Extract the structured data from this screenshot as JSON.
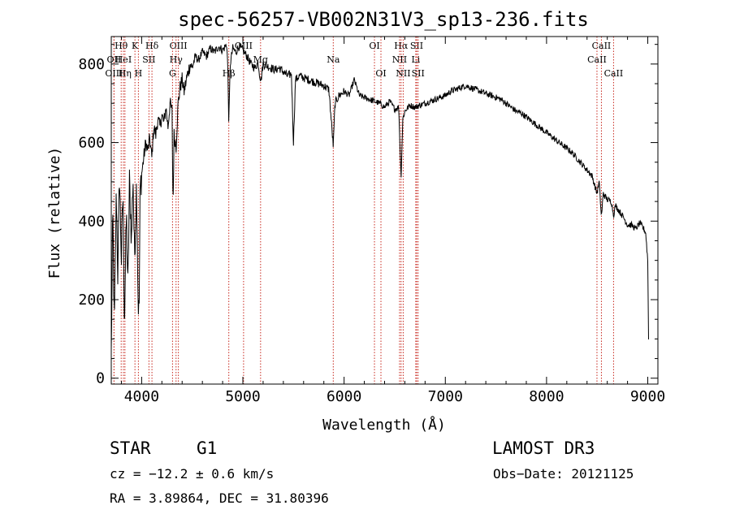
{
  "chart_data": {
    "type": "line",
    "title": "spec-56257-VB002N31V3_sp13-236.fits",
    "xlabel": "Wavelength (Å)",
    "ylabel": "Flux (relative)",
    "xlim": [
      3700,
      9100
    ],
    "ylim": [
      -15,
      870
    ],
    "x_ticks": [
      4000,
      5000,
      6000,
      7000,
      8000,
      9000
    ],
    "y_ticks": [
      0,
      200,
      400,
      600,
      800
    ],
    "spectrum_anchors": [
      [
        3700,
        60
      ],
      [
        3715,
        420
      ],
      [
        3730,
        120
      ],
      [
        3750,
        480
      ],
      [
        3765,
        250
      ],
      [
        3780,
        520
      ],
      [
        3800,
        300
      ],
      [
        3815,
        480
      ],
      [
        3830,
        140
      ],
      [
        3850,
        420
      ],
      [
        3865,
        220
      ],
      [
        3880,
        500
      ],
      [
        3900,
        350
      ],
      [
        3915,
        520
      ],
      [
        3930,
        300
      ],
      [
        3950,
        500
      ],
      [
        3965,
        200
      ],
      [
        3975,
        160
      ],
      [
        3985,
        480
      ],
      [
        4000,
        520
      ],
      [
        4020,
        560
      ],
      [
        4040,
        600
      ],
      [
        4060,
        580
      ],
      [
        4080,
        610
      ],
      [
        4100,
        560
      ],
      [
        4120,
        640
      ],
      [
        4140,
        620
      ],
      [
        4160,
        660
      ],
      [
        4180,
        640
      ],
      [
        4200,
        670
      ],
      [
        4220,
        650
      ],
      [
        4240,
        690
      ],
      [
        4260,
        640
      ],
      [
        4280,
        700
      ],
      [
        4300,
        680
      ],
      [
        4310,
        430
      ],
      [
        4320,
        620
      ],
      [
        4340,
        590
      ],
      [
        4360,
        700
      ],
      [
        4380,
        740
      ],
      [
        4400,
        760
      ],
      [
        4420,
        730
      ],
      [
        4450,
        770
      ],
      [
        4480,
        800
      ],
      [
        4500,
        790
      ],
      [
        4530,
        820
      ],
      [
        4560,
        810
      ],
      [
        4600,
        830
      ],
      [
        4640,
        820
      ],
      [
        4680,
        840
      ],
      [
        4720,
        830
      ],
      [
        4760,
        845
      ],
      [
        4800,
        835
      ],
      [
        4840,
        850
      ],
      [
        4850,
        800
      ],
      [
        4861,
        650
      ],
      [
        4875,
        800
      ],
      [
        4900,
        840
      ],
      [
        4930,
        830
      ],
      [
        4960,
        845
      ],
      [
        5000,
        835
      ],
      [
        5040,
        820
      ],
      [
        5080,
        800
      ],
      [
        5120,
        790
      ],
      [
        5150,
        805
      ],
      [
        5167,
        770
      ],
      [
        5180,
        760
      ],
      [
        5200,
        800
      ],
      [
        5240,
        795
      ],
      [
        5280,
        790
      ],
      [
        5320,
        785
      ],
      [
        5360,
        790
      ],
      [
        5400,
        780
      ],
      [
        5440,
        770
      ],
      [
        5480,
        775
      ],
      [
        5500,
        600
      ],
      [
        5520,
        760
      ],
      [
        5560,
        770
      ],
      [
        5600,
        765
      ],
      [
        5650,
        760
      ],
      [
        5700,
        755
      ],
      [
        5750,
        750
      ],
      [
        5800,
        745
      ],
      [
        5850,
        735
      ],
      [
        5875,
        650
      ],
      [
        5893,
        590
      ],
      [
        5910,
        700
      ],
      [
        5950,
        720
      ],
      [
        6000,
        730
      ],
      [
        6050,
        720
      ],
      [
        6100,
        760
      ],
      [
        6150,
        720
      ],
      [
        6200,
        715
      ],
      [
        6250,
        710
      ],
      [
        6300,
        705
      ],
      [
        6350,
        700
      ],
      [
        6400,
        690
      ],
      [
        6450,
        705
      ],
      [
        6500,
        685
      ],
      [
        6540,
        690
      ],
      [
        6563,
        510
      ],
      [
        6580,
        660
      ],
      [
        6600,
        680
      ],
      [
        6650,
        695
      ],
      [
        6700,
        690
      ],
      [
        6750,
        695
      ],
      [
        6800,
        700
      ],
      [
        6850,
        705
      ],
      [
        6900,
        710
      ],
      [
        6950,
        715
      ],
      [
        7000,
        720
      ],
      [
        7050,
        730
      ],
      [
        7100,
        735
      ],
      [
        7150,
        740
      ],
      [
        7200,
        745
      ],
      [
        7250,
        740
      ],
      [
        7300,
        735
      ],
      [
        7350,
        730
      ],
      [
        7400,
        725
      ],
      [
        7450,
        720
      ],
      [
        7500,
        715
      ],
      [
        7550,
        710
      ],
      [
        7600,
        700
      ],
      [
        7650,
        690
      ],
      [
        7700,
        680
      ],
      [
        7750,
        675
      ],
      [
        7800,
        665
      ],
      [
        7850,
        655
      ],
      [
        7900,
        645
      ],
      [
        7950,
        635
      ],
      [
        8000,
        625
      ],
      [
        8050,
        615
      ],
      [
        8100,
        605
      ],
      [
        8150,
        595
      ],
      [
        8200,
        585
      ],
      [
        8250,
        575
      ],
      [
        8300,
        560
      ],
      [
        8350,
        545
      ],
      [
        8400,
        530
      ],
      [
        8450,
        515
      ],
      [
        8498,
        470
      ],
      [
        8520,
        500
      ],
      [
        8542,
        410
      ],
      [
        8560,
        470
      ],
      [
        8600,
        455
      ],
      [
        8640,
        450
      ],
      [
        8662,
        415
      ],
      [
        8680,
        440
      ],
      [
        8720,
        425
      ],
      [
        8760,
        410
      ],
      [
        8800,
        390
      ],
      [
        8840,
        390
      ],
      [
        8880,
        380
      ],
      [
        8920,
        395
      ],
      [
        8960,
        380
      ],
      [
        8980,
        370
      ],
      [
        9000,
        300
      ],
      [
        9010,
        50
      ]
    ],
    "spectral_lines": [
      {
        "label": "Hθ",
        "wave": 3798,
        "row": 0
      },
      {
        "label": "OII",
        "wave": 3727,
        "row": 1
      },
      {
        "label": "OIII",
        "wave": 3727,
        "row": 2
      },
      {
        "label": "HeI",
        "wave": 3820,
        "row": 1
      },
      {
        "label": "Hη",
        "wave": 3835,
        "row": 2
      },
      {
        "label": "K",
        "wave": 3934,
        "row": 0
      },
      {
        "label": "H",
        "wave": 3968,
        "row": 2
      },
      {
        "label": "SII",
        "wave": 4072,
        "row": 1
      },
      {
        "label": "Hδ",
        "wave": 4102,
        "row": 0
      },
      {
        "label": "OIII",
        "wave": 4363,
        "row": 0
      },
      {
        "label": "Hγ",
        "wave": 4340,
        "row": 1
      },
      {
        "label": "G",
        "wave": 4305,
        "row": 2
      },
      {
        "label": "OIII",
        "wave": 5007,
        "row": 0
      },
      {
        "label": "Hβ",
        "wave": 4861,
        "row": 2
      },
      {
        "label": "Mg",
        "wave": 5175,
        "row": 1
      },
      {
        "label": "Na",
        "wave": 5893,
        "row": 1
      },
      {
        "label": "OI",
        "wave": 6300,
        "row": 0
      },
      {
        "label": "OI",
        "wave": 6364,
        "row": 2
      },
      {
        "label": "Hα",
        "wave": 6563,
        "row": 0
      },
      {
        "label": "NII",
        "wave": 6548,
        "row": 1
      },
      {
        "label": "NII",
        "wave": 6584,
        "row": 2
      },
      {
        "label": "SII",
        "wave": 6717,
        "row": 0
      },
      {
        "label": "Li",
        "wave": 6708,
        "row": 1
      },
      {
        "label": "SII",
        "wave": 6731,
        "row": 2
      },
      {
        "label": "CaII",
        "wave": 8542,
        "row": 0
      },
      {
        "label": "CaII",
        "wave": 8498,
        "row": 1
      },
      {
        "label": "CaII",
        "wave": 8662,
        "row": 2
      }
    ]
  },
  "info": {
    "object_class": "STAR",
    "subclass": "G1",
    "survey": "LAMOST DR3",
    "redshift_line": "cz = −12.2 ± 0.6 km/s",
    "obs_date_line": "Obs−Date: 20121125",
    "coords_line": "RA =   3.89864, DEC =  31.80396"
  }
}
